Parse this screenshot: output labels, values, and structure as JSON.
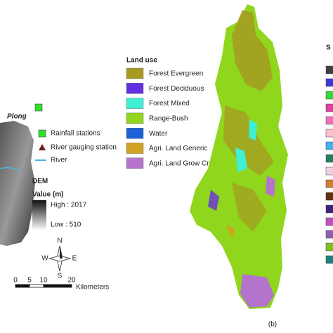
{
  "left_panel": {
    "place_label": "Plong",
    "legend": {
      "rainfall": "Rainfall stations",
      "gauging": "River gauging station",
      "river": "River"
    },
    "dem": {
      "title": "DEM",
      "unit_label": "Value (m)",
      "high": "High : 2017",
      "low": "Low : 510"
    },
    "north_arrow": {
      "n": "N",
      "w": "W",
      "e": "E",
      "s": "S"
    },
    "scale_bar": {
      "labels": [
        "0",
        "5",
        "10",
        "20"
      ],
      "unit": "Kilometers"
    }
  },
  "land_use": {
    "title": "Land use",
    "items": [
      {
        "name": "Forest Evergreen",
        "color": "#a69a22"
      },
      {
        "name": "Forest Deciduous",
        "color": "#6530e0"
      },
      {
        "name": "Forest Mixed",
        "color": "#40f0d4"
      },
      {
        "name": "Range-Bush",
        "color": "#8fd61c"
      },
      {
        "name": "Water",
        "color": "#1b62d6"
      },
      {
        "name": "Agri. Land Generic",
        "color": "#d2a222"
      },
      {
        "name": "Agri. Land Grow Crop",
        "color": "#b474cc"
      }
    ]
  },
  "panel_label": "(b)",
  "soil_title": "S"
}
